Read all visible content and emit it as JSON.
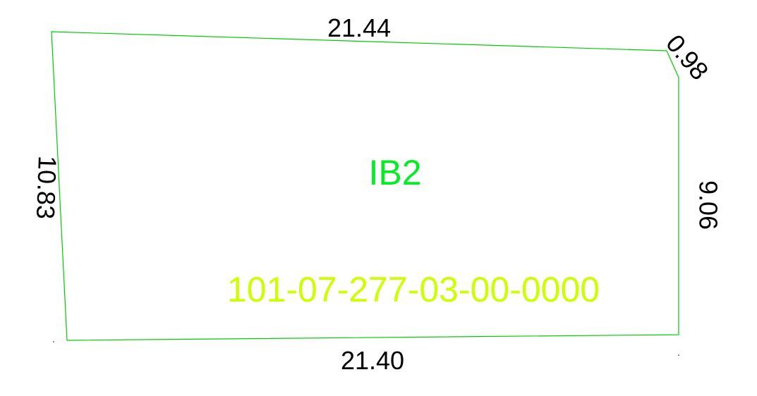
{
  "parcel": {
    "zone_label": "IB2",
    "parcel_number": "101-07-277-03-00-0000",
    "boundary_color": "#00cc00",
    "zone_color": "#00ee22",
    "parcel_number_color": "#ccff00"
  },
  "dimensions": {
    "top": "21.44",
    "corner": "0.98",
    "right": "9.06",
    "bottom": "21.40",
    "left": "10.83"
  }
}
